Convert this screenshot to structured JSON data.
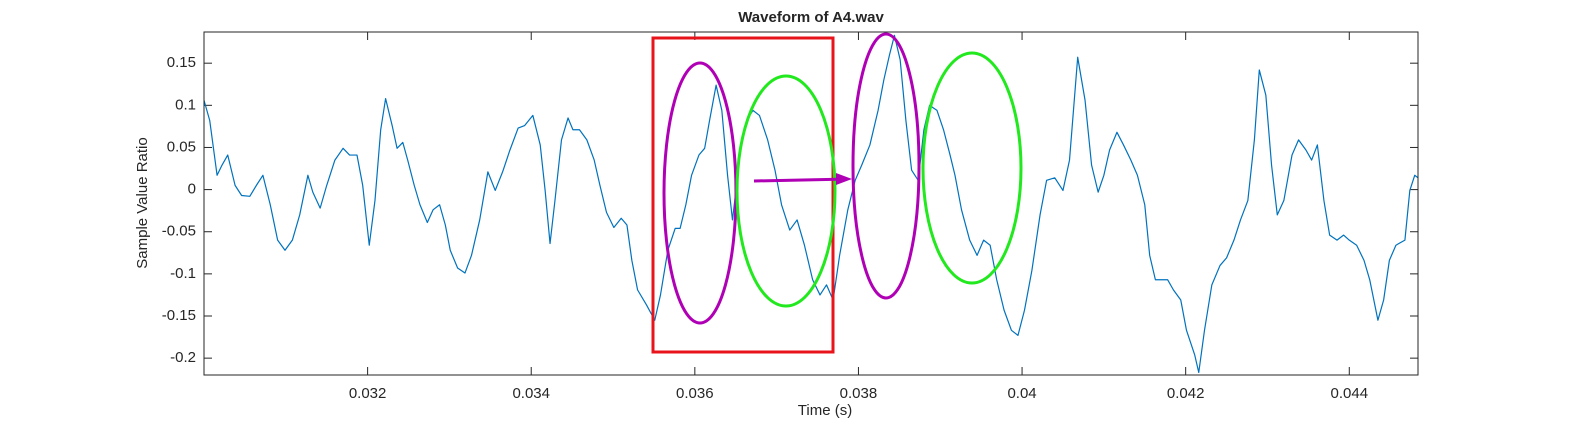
{
  "chart_data": {
    "type": "line",
    "title": "Waveform of A4.wav",
    "x_label": "Time (s)",
    "y_label": "Sample Value Ratio",
    "color": "#0072BD",
    "grid": false,
    "xlim": [
      0.03,
      0.04484
    ],
    "ylim": [
      -0.22,
      0.187
    ],
    "xticks": [
      0.032,
      0.034,
      0.036,
      0.038,
      0.04,
      0.042,
      0.044
    ],
    "yticks": [
      -0.2,
      -0.15,
      -0.1,
      -0.05,
      0,
      0.05,
      0.1,
      0.15
    ],
    "x": [
      0.03,
      0.03007,
      0.03016,
      0.03022,
      0.03029,
      0.03038,
      0.03046,
      0.03056,
      0.03064,
      0.03072,
      0.03081,
      0.0309,
      0.03099,
      0.03108,
      0.03117,
      0.03127,
      0.03133,
      0.03142,
      0.0315,
      0.0316,
      0.0317,
      0.03178,
      0.03187,
      0.03194,
      0.03202,
      0.03209,
      0.03216,
      0.03222,
      0.0323,
      0.03236,
      0.03243,
      0.03249,
      0.03257,
      0.03264,
      0.03273,
      0.0328,
      0.03288,
      0.03295,
      0.03301,
      0.0331,
      0.03319,
      0.03327,
      0.03337,
      0.03347,
      0.03356,
      0.03365,
      0.03374,
      0.03384,
      0.03392,
      0.03402,
      0.03411,
      0.03417,
      0.03423,
      0.03429,
      0.03437,
      0.03445,
      0.03451,
      0.03459,
      0.03468,
      0.03477,
      0.03484,
      0.03492,
      0.03501,
      0.0351,
      0.03517,
      0.03523,
      0.0353,
      0.03541,
      0.03551,
      0.03558,
      0.03567,
      0.03576,
      0.03582,
      0.03589,
      0.03596,
      0.03605,
      0.03612,
      0.03618,
      0.03626,
      0.03633,
      0.0364,
      0.03646,
      0.03651,
      0.03657,
      0.03665,
      0.03671,
      0.03679,
      0.03689,
      0.03698,
      0.03706,
      0.03716,
      0.03725,
      0.03734,
      0.03744,
      0.03753,
      0.03761,
      0.03769,
      0.03777,
      0.03787,
      0.03796,
      0.03804,
      0.03814,
      0.03824,
      0.03831,
      0.03838,
      0.03844,
      0.03851,
      0.03858,
      0.03865,
      0.03873,
      0.0388,
      0.03887,
      0.03896,
      0.03904,
      0.03912,
      0.03918,
      0.03926,
      0.03936,
      0.03945,
      0.03953,
      0.03961,
      0.03969,
      0.03978,
      0.03987,
      0.03995,
      0.04003,
      0.04012,
      0.04022,
      0.0403,
      0.0404,
      0.0405,
      0.04058,
      0.04068,
      0.04077,
      0.04085,
      0.04093,
      0.041,
      0.04107,
      0.04116,
      0.04124,
      0.04133,
      0.04141,
      0.0415,
      0.04156,
      0.04163,
      0.04171,
      0.04178,
      0.04185,
      0.04194,
      0.04201,
      0.04211,
      0.04216,
      0.04223,
      0.04232,
      0.04242,
      0.0425,
      0.04259,
      0.04267,
      0.04276,
      0.04284,
      0.0429,
      0.04298,
      0.04305,
      0.04312,
      0.0432,
      0.0433,
      0.04338,
      0.04347,
      0.04354,
      0.04361,
      0.04369,
      0.04376,
      0.04385,
      0.04393,
      0.044,
      0.04409,
      0.04418,
      0.04425,
      0.04435,
      0.04442,
      0.04449,
      0.04457,
      0.04468,
      0.04474,
      0.0448,
      0.04484
    ],
    "values": [
      0.106,
      0.082,
      0.017,
      0.029,
      0.041,
      0.005,
      -0.007,
      -0.008,
      0.005,
      0.017,
      -0.018,
      -0.06,
      -0.072,
      -0.06,
      -0.03,
      0.017,
      -0.003,
      -0.022,
      0.005,
      0.035,
      0.049,
      0.041,
      0.041,
      0.005,
      -0.066,
      -0.013,
      0.071,
      0.108,
      0.076,
      0.049,
      0.056,
      0.035,
      0.005,
      -0.018,
      -0.039,
      -0.024,
      -0.018,
      -0.042,
      -0.072,
      -0.093,
      -0.099,
      -0.078,
      -0.036,
      0.021,
      -0.001,
      0.021,
      0.047,
      0.073,
      0.076,
      0.088,
      0.053,
      -0.001,
      -0.064,
      -0.013,
      0.059,
      0.085,
      0.071,
      0.071,
      0.059,
      0.035,
      0.005,
      -0.027,
      -0.045,
      -0.034,
      -0.042,
      -0.084,
      -0.119,
      -0.137,
      -0.155,
      -0.125,
      -0.072,
      -0.046,
      -0.046,
      -0.018,
      0.017,
      0.041,
      0.049,
      0.082,
      0.124,
      0.094,
      0.017,
      -0.036,
      0.005,
      0.059,
      0.085,
      0.094,
      0.088,
      0.059,
      0.023,
      -0.018,
      -0.048,
      -0.036,
      -0.066,
      -0.107,
      -0.125,
      -0.113,
      -0.131,
      -0.078,
      -0.024,
      0.011,
      0.029,
      0.053,
      0.094,
      0.13,
      0.16,
      0.183,
      0.154,
      0.082,
      0.023,
      0.011,
      0.071,
      0.1,
      0.094,
      0.071,
      0.041,
      0.017,
      -0.024,
      -0.06,
      -0.078,
      -0.06,
      -0.066,
      -0.107,
      -0.143,
      -0.167,
      -0.173,
      -0.143,
      -0.096,
      -0.03,
      0.011,
      0.014,
      -0.001,
      0.035,
      0.157,
      0.106,
      0.029,
      -0.003,
      0.017,
      0.047,
      0.068,
      0.053,
      0.035,
      0.017,
      -0.018,
      -0.078,
      -0.107,
      -0.107,
      -0.107,
      -0.119,
      -0.131,
      -0.167,
      -0.196,
      -0.217,
      -0.167,
      -0.113,
      -0.09,
      -0.081,
      -0.06,
      -0.036,
      -0.013,
      0.059,
      0.142,
      0.112,
      0.029,
      -0.03,
      -0.013,
      0.041,
      0.059,
      0.047,
      0.035,
      0.053,
      -0.013,
      -0.054,
      -0.06,
      -0.054,
      -0.06,
      -0.066,
      -0.084,
      -0.107,
      -0.155,
      -0.131,
      -0.084,
      -0.066,
      -0.06,
      -0.001,
      0.017,
      0.014
    ]
  }
}
